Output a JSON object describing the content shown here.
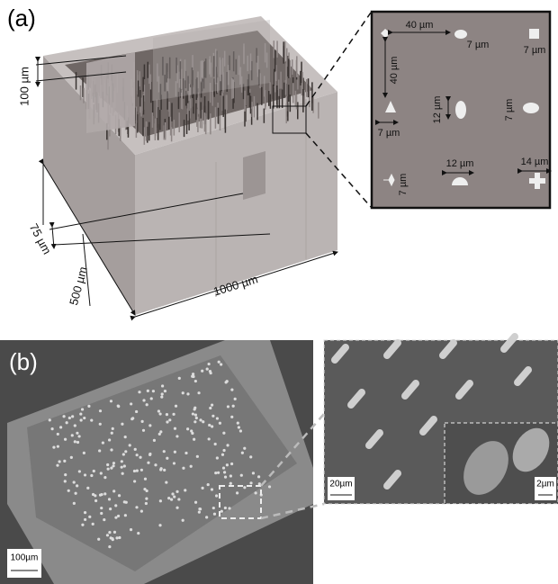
{
  "panel_a": {
    "label": "(a)",
    "render_labels": {
      "wall_height": "100 µm",
      "wall_gap": "75 µm",
      "depth": "500 µm",
      "width": "1000 µm"
    },
    "inset_labels": [
      "40 µm",
      "7 µm",
      "7 µm",
      "40 µm",
      "12 µm",
      "7 µm",
      "7 µm",
      "7 µm",
      "12 µm",
      "14 µm"
    ]
  },
  "panel_b": {
    "label": "(b)",
    "scale_bars": [
      "100µm",
      "20µm",
      "2µm"
    ]
  }
}
